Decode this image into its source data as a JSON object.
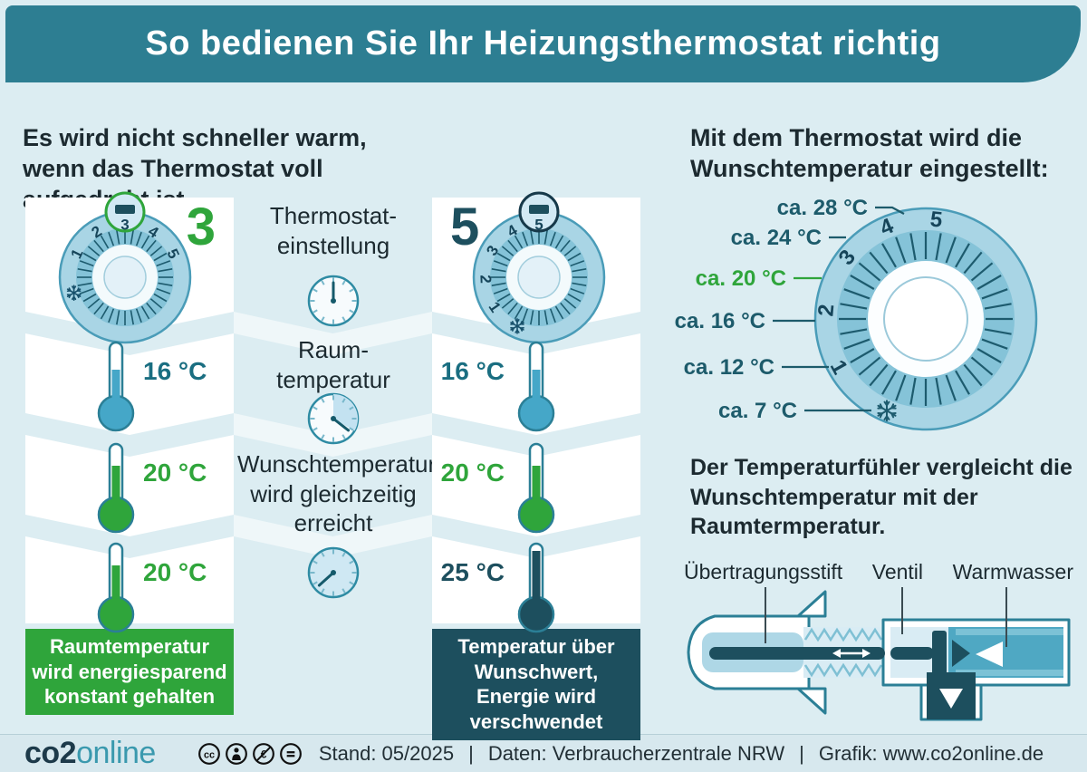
{
  "colors": {
    "header": "#2d7e92",
    "page_bg": "#dcedf2",
    "green": "#2fa53b",
    "dark_teal": "#1d4f5e",
    "thermo_blue": "#45a7c8",
    "teal_text": "#1a6e81",
    "scale_teal": "#1d5b6b",
    "text_dark": "#1c2a30",
    "disc": "#a9d5e5",
    "disc_border": "#4a9cb8",
    "band": "#85c3d8",
    "tick": "#1d5b6e"
  },
  "header": {
    "title": "So bedienen Sie Ihr Heizungsthermostat richtig"
  },
  "intro_left": {
    "text": "Es wird nicht schneller warm, wenn das Thermostat voll aufgedreht ist."
  },
  "column3": {
    "setting": "3",
    "dial_numbers": [
      "1",
      "2",
      "3",
      "4",
      "5"
    ],
    "rows": [
      {
        "temp": "16 °C"
      },
      {
        "temp": "20 °C"
      },
      {
        "temp": "20 °C"
      }
    ],
    "caption": "Raumtemperatur wird energiesparend konstant gehalten"
  },
  "column5": {
    "setting": "5",
    "dial_numbers": [
      "1",
      "2",
      "3",
      "4",
      "5"
    ],
    "rows": [
      {
        "temp": "16 °C"
      },
      {
        "temp": "20 °C"
      },
      {
        "temp": "25 °C"
      }
    ],
    "caption": "Temperatur über Wunschwert, Energie wird verschwendet"
  },
  "middle": {
    "title_line1": "Thermostat-",
    "title_line2": "einstellung",
    "room_line1": "Raum-",
    "room_line2": "temperatur",
    "wish": "Wunschtemperatur wird gleichzeitig erreicht"
  },
  "right_panel": {
    "heading": "Mit dem Thermostat wird die Wunschtemperatur eingestellt:",
    "scale_labels": [
      {
        "label": "ca. 28 °C"
      },
      {
        "label": "ca. 24 °C"
      },
      {
        "label": "ca. 20 °C"
      },
      {
        "label": "ca. 16 °C"
      },
      {
        "label": "ca. 12 °C"
      },
      {
        "label": "ca. 7 °C"
      }
    ],
    "dial_numbers": [
      "5",
      "4",
      "3",
      "2",
      "1"
    ],
    "sensor_text": "Der Temperaturfühler vergleicht die Wunschtemperatur mit der Raumtermperatur.",
    "valve_labels": [
      "Übertragungsstift",
      "Ventil",
      "Warmwasser"
    ]
  },
  "footer": {
    "logo_bold": "co2",
    "logo_light": "online",
    "license_icons": [
      {
        "name": "cc",
        "glyph": "cc"
      },
      {
        "name": "by",
        "glyph": ""
      },
      {
        "name": "nc-eu",
        "glyph": "€"
      },
      {
        "name": "nd",
        "glyph": ""
      }
    ],
    "items": [
      "Stand: 05/2025",
      "Daten: Verbraucherzentrale NRW",
      "Grafik: www.co2online.de"
    ],
    "separator": "|"
  }
}
